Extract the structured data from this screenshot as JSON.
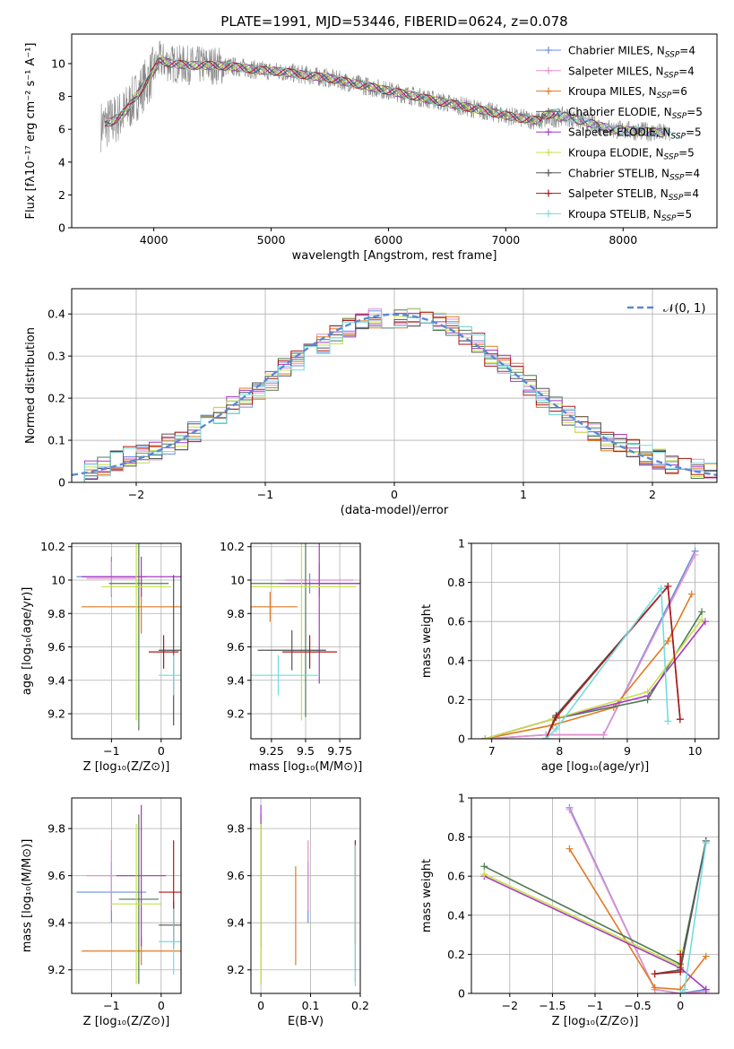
{
  "title": "PLATE=1991, MJD=53446, FIBERID=0624, z=0.078",
  "models": [
    {
      "name": "Chabrier MILES",
      "nssp": "4",
      "color": "#6a8fdd"
    },
    {
      "name": "Salpeter MILES",
      "nssp": "4",
      "color": "#e58fcf"
    },
    {
      "name": "Kroupa MILES",
      "nssp": "6",
      "color": "#e07a22"
    },
    {
      "name": "Chabrier ELODIE",
      "nssp": "5",
      "color": "#4f7a55"
    },
    {
      "name": "Salpeter ELODIE",
      "nssp": "5",
      "color": "#a63ac0"
    },
    {
      "name": "Kroupa ELODIE",
      "nssp": "5",
      "color": "#c8e04a"
    },
    {
      "name": "Chabrier STELIB",
      "nssp": "4",
      "color": "#555555"
    },
    {
      "name": "Salpeter STELIB",
      "nssp": "4",
      "color": "#b01818"
    },
    {
      "name": "Kroupa STELIB",
      "nssp": "5",
      "color": "#72dce0"
    }
  ],
  "chart_data": [
    {
      "id": "spectrum",
      "type": "line",
      "xlabel": "wavelength [Angstrom, rest frame]",
      "ylabel": "Flux [fλ10⁻¹⁷ erg cm⁻² s⁻¹ A⁻¹]",
      "xlim": [
        3300,
        8800
      ],
      "ylim": [
        0,
        11.8
      ],
      "xticks": [
        4000,
        5000,
        6000,
        7000,
        8000
      ],
      "yticks": [
        0,
        2,
        4,
        6,
        8,
        10
      ],
      "legend": "top-right",
      "data_x": [
        3550,
        3650,
        3750,
        3850,
        3950,
        4050,
        4150,
        4300,
        4500,
        4700,
        4900,
        5100,
        5300,
        5500,
        5700,
        5900,
        6100,
        6300,
        6500,
        6700,
        6900,
        7100,
        7300,
        7500,
        7700,
        7900,
        8100,
        8300,
        8400
      ],
      "data_y": [
        6.2,
        6.5,
        7.0,
        8.0,
        9.0,
        10.2,
        10.0,
        9.9,
        9.9,
        9.8,
        9.6,
        9.5,
        9.3,
        9.1,
        8.8,
        8.5,
        8.2,
        7.9,
        7.6,
        7.3,
        7.0,
        6.7,
        6.5,
        6.8,
        6.4,
        6.0,
        5.9,
        5.8,
        5.7
      ]
    },
    {
      "id": "residuals",
      "type": "line",
      "xlabel": "(data-model)/error",
      "ylabel": "Normed distribution",
      "xlim": [
        -2.5,
        2.5
      ],
      "ylim": [
        0,
        0.46
      ],
      "xticks": [
        -2,
        -1,
        0,
        1,
        2
      ],
      "yticks": [
        0.0,
        0.1,
        0.2,
        0.3,
        0.4
      ],
      "legend_label": "𝒩(0, 1)",
      "legend": "top-right",
      "bin_width": 0.1,
      "hist": [
        0.025,
        0.03,
        0.04,
        0.05,
        0.06,
        0.07,
        0.075,
        0.09,
        0.1,
        0.12,
        0.14,
        0.16,
        0.18,
        0.2,
        0.22,
        0.24,
        0.27,
        0.29,
        0.31,
        0.33,
        0.35,
        0.37,
        0.38,
        0.39,
        0.38,
        0.39,
        0.395,
        0.39,
        0.38,
        0.37,
        0.35,
        0.33,
        0.3,
        0.28,
        0.26,
        0.23,
        0.2,
        0.18,
        0.16,
        0.14,
        0.12,
        0.1,
        0.09,
        0.08,
        0.065,
        0.055,
        0.045,
        0.035,
        0.03,
        0.025
      ]
    },
    {
      "id": "age_vs_z",
      "type": "scatter",
      "xlabel": "Z [log₁₀(Z/Z⊙)]",
      "ylabel": "age  [log₁₀(age/yr)]",
      "xlim": [
        -1.8,
        0.4
      ],
      "ylim": [
        9.05,
        10.22
      ],
      "xticks": [
        -1,
        0
      ],
      "yticks": [
        9.2,
        9.4,
        9.6,
        9.8,
        10.0,
        10.2
      ],
      "points": [
        {
          "m": 0,
          "x": -1.0,
          "y": 10.02,
          "xerr": 0.7,
          "yerr": 0.12
        },
        {
          "m": 1,
          "x": -1.0,
          "y": 10.01,
          "xerr": 0.5,
          "yerr": 0.1
        },
        {
          "m": 2,
          "x": -0.4,
          "y": 9.84,
          "xerr": 1.2,
          "yerr": 0.16
        },
        {
          "m": 3,
          "x": -0.45,
          "y": 9.98,
          "xerr": 0.6,
          "yerr": 0.88
        },
        {
          "m": 4,
          "x": -0.4,
          "y": 10.02,
          "xerr": 1.2,
          "yerr": 0.12
        },
        {
          "m": 5,
          "x": -0.5,
          "y": 9.96,
          "xerr": 0.7,
          "yerr": 0.8
        },
        {
          "m": 6,
          "x": 0.25,
          "y": 9.58,
          "xerr": 0.3,
          "yerr": 0.45
        },
        {
          "m": 7,
          "x": 0.05,
          "y": 9.57,
          "xerr": 0.3,
          "yerr": 0.1
        },
        {
          "m": 8,
          "x": 0.25,
          "y": 9.43,
          "xerr": 0.3,
          "yerr": 0.12
        }
      ]
    },
    {
      "id": "age_vs_mass",
      "type": "scatter",
      "xlabel": "mass [log₁₀(M/M⊙)]",
      "ylabel": "",
      "xlim": [
        9.1,
        9.9
      ],
      "ylim": [
        9.05,
        10.22
      ],
      "xticks": [
        9.25,
        9.5,
        9.75
      ],
      "yticks": [
        9.2,
        9.4,
        9.6,
        9.8,
        10.0,
        10.2
      ],
      "points": [
        {
          "m": 0,
          "x": 9.53,
          "y": 9.98,
          "xerr": 0.2,
          "yerr": 0.06
        },
        {
          "m": 1,
          "x": 9.6,
          "y": 10.0,
          "xerr": 0.25,
          "yerr": 0.1
        },
        {
          "m": 2,
          "x": 9.24,
          "y": 9.84,
          "xerr": 0.2,
          "yerr": 0.09
        },
        {
          "m": 3,
          "x": 9.5,
          "y": 9.98,
          "xerr": 0.5,
          "yerr": 0.8
        },
        {
          "m": 4,
          "x": 9.6,
          "y": 9.98,
          "xerr": 0.3,
          "yerr": 0.6
        },
        {
          "m": 5,
          "x": 9.47,
          "y": 9.96,
          "xerr": 0.4,
          "yerr": 0.8
        },
        {
          "m": 6,
          "x": 9.4,
          "y": 9.58,
          "xerr": 0.25,
          "yerr": 0.12
        },
        {
          "m": 7,
          "x": 9.53,
          "y": 9.57,
          "xerr": 0.2,
          "yerr": 0.1
        },
        {
          "m": 8,
          "x": 9.3,
          "y": 9.43,
          "xerr": 0.3,
          "yerr": 0.12
        }
      ]
    },
    {
      "id": "weight_vs_age",
      "type": "line",
      "xlabel": "age  [log₁₀(age/yr)]",
      "ylabel": "mass weight",
      "xlim": [
        6.7,
        10.35
      ],
      "ylim": [
        0,
        1.0
      ],
      "xticks": [
        7,
        8,
        9,
        10
      ],
      "yticks": [
        0.0,
        0.2,
        0.4,
        0.6,
        0.8,
        1.0
      ],
      "series": [
        {
          "m": 0,
          "x": [
            6.9,
            7.8,
            8.65,
            10.0
          ],
          "y": [
            0.0,
            0.02,
            0.02,
            0.96
          ]
        },
        {
          "m": 1,
          "x": [
            6.9,
            7.8,
            8.65,
            10.0
          ],
          "y": [
            0.0,
            0.02,
            0.02,
            0.94
          ]
        },
        {
          "m": 2,
          "x": [
            6.9,
            7.9,
            8.8,
            9.6,
            9.95
          ],
          "y": [
            0.0,
            0.07,
            0.16,
            0.5,
            0.74
          ]
        },
        {
          "m": 3,
          "x": [
            6.9,
            7.9,
            9.3,
            10.1
          ],
          "y": [
            0.0,
            0.1,
            0.2,
            0.65
          ]
        },
        {
          "m": 4,
          "x": [
            6.9,
            7.9,
            9.3,
            10.15
          ],
          "y": [
            0.0,
            0.1,
            0.22,
            0.6
          ]
        },
        {
          "m": 5,
          "x": [
            6.9,
            7.9,
            9.3,
            10.1
          ],
          "y": [
            0.0,
            0.1,
            0.24,
            0.61
          ]
        },
        {
          "m": 6,
          "x": [
            7.8,
            7.95,
            9.6,
            9.78
          ],
          "y": [
            0.0,
            0.12,
            0.78,
            0.1
          ]
        },
        {
          "m": 7,
          "x": [
            7.8,
            7.95,
            9.6,
            9.78
          ],
          "y": [
            0.0,
            0.11,
            0.78,
            0.1
          ]
        },
        {
          "m": 8,
          "x": [
            7.8,
            7.95,
            9.5,
            9.6
          ],
          "y": [
            0.0,
            0.05,
            0.77,
            0.09
          ]
        }
      ]
    },
    {
      "id": "mass_vs_z",
      "type": "scatter",
      "xlabel": "Z [log₁₀(Z/Z⊙)]",
      "ylabel": "mass [log₁₀(M/M⊙)]",
      "xlim": [
        -1.8,
        0.4
      ],
      "ylim": [
        9.1,
        9.93
      ],
      "xticks": [
        -1,
        0
      ],
      "yticks": [
        9.2,
        9.4,
        9.6,
        9.8
      ],
      "points": [
        {
          "m": 0,
          "x": -1.0,
          "y": 9.53,
          "xerr": 0.7,
          "yerr": 0.13
        },
        {
          "m": 1,
          "x": -1.0,
          "y": 9.6,
          "xerr": 0.5,
          "yerr": 0.15
        },
        {
          "m": 2,
          "x": -0.4,
          "y": 9.28,
          "xerr": 1.2,
          "yerr": 0.06
        },
        {
          "m": 3,
          "x": -0.45,
          "y": 9.5,
          "xerr": 0.4,
          "yerr": 0.36
        },
        {
          "m": 4,
          "x": -0.4,
          "y": 9.6,
          "xerr": 0.5,
          "yerr": 0.3
        },
        {
          "m": 5,
          "x": -0.5,
          "y": 9.48,
          "xerr": 0.5,
          "yerr": 0.34
        },
        {
          "m": 6,
          "x": 0.25,
          "y": 9.39,
          "xerr": 0.3,
          "yerr": 0.1
        },
        {
          "m": 7,
          "x": 0.25,
          "y": 9.53,
          "xerr": 0.3,
          "yerr": 0.22
        },
        {
          "m": 8,
          "x": 0.25,
          "y": 9.32,
          "xerr": 0.3,
          "yerr": 0.14
        }
      ]
    },
    {
      "id": "mass_vs_ebv",
      "type": "scatter",
      "xlabel": "E(B-V)",
      "ylabel": "",
      "xlim": [
        -0.02,
        0.2
      ],
      "ylim": [
        9.1,
        9.93
      ],
      "xticks": [
        0.0,
        0.1,
        0.2
      ],
      "yticks": [
        9.2,
        9.4,
        9.6,
        9.8
      ],
      "points": [
        {
          "m": 0,
          "x": 0.095,
          "y": 9.53,
          "xerr": 0,
          "yerr": 0.13
        },
        {
          "m": 1,
          "x": 0.095,
          "y": 9.6,
          "xerr": 0,
          "yerr": 0.15
        },
        {
          "m": 2,
          "x": 0.07,
          "y": 9.43,
          "xerr": 0,
          "yerr": 0.21
        },
        {
          "m": 3,
          "x": 0.0,
          "y": 9.5,
          "xerr": 0,
          "yerr": 0.36
        },
        {
          "m": 4,
          "x": 0.0,
          "y": 9.6,
          "xerr": 0,
          "yerr": 0.3
        },
        {
          "m": 5,
          "x": 0.0,
          "y": 9.48,
          "xerr": 0,
          "yerr": 0.34
        },
        {
          "m": 6,
          "x": 0.19,
          "y": 9.45,
          "xerr": 0,
          "yerr": 0.3
        },
        {
          "m": 7,
          "x": 0.19,
          "y": 9.53,
          "xerr": 0,
          "yerr": 0.22
        },
        {
          "m": 8,
          "x": 0.19,
          "y": 9.43,
          "xerr": 0,
          "yerr": 0.3
        }
      ]
    },
    {
      "id": "weight_vs_z",
      "type": "line",
      "xlabel": "Z [log₁₀(Z/Z⊙)]",
      "ylabel": "mass weight",
      "xlim": [
        -2.45,
        0.45
      ],
      "ylim": [
        0,
        1.0
      ],
      "xticks": [
        -2.0,
        -1.5,
        -1.0,
        -0.5,
        0.0
      ],
      "yticks": [
        0.0,
        0.2,
        0.4,
        0.6,
        0.8,
        1.0
      ],
      "series": [
        {
          "m": 0,
          "x": [
            -1.3,
            -0.3,
            0.0,
            0.3
          ],
          "y": [
            0.95,
            0.02,
            0.0,
            0.02
          ]
        },
        {
          "m": 1,
          "x": [
            -1.3,
            -0.3,
            0.0,
            0.3
          ],
          "y": [
            0.94,
            0.02,
            0.0,
            0.01
          ]
        },
        {
          "m": 2,
          "x": [
            -1.3,
            -0.3,
            0.0,
            0.3
          ],
          "y": [
            0.74,
            0.03,
            0.02,
            0.19
          ]
        },
        {
          "m": 3,
          "x": [
            -2.3,
            0.0,
            0.3
          ],
          "y": [
            0.65,
            0.15,
            0.78
          ]
        },
        {
          "m": 4,
          "x": [
            -2.3,
            0.0,
            0.3
          ],
          "y": [
            0.6,
            0.13,
            0.02
          ]
        },
        {
          "m": 5,
          "x": [
            -2.3,
            0.0,
            0.0
          ],
          "y": [
            0.61,
            0.14,
            0.22
          ]
        },
        {
          "m": 6,
          "x": [
            -0.3,
            0.0,
            0.3
          ],
          "y": [
            0.1,
            0.12,
            0.78
          ]
        },
        {
          "m": 7,
          "x": [
            -0.3,
            0.0,
            0.0
          ],
          "y": [
            0.1,
            0.11,
            0.2
          ]
        },
        {
          "m": 8,
          "x": [
            0.0,
            0.05,
            0.3
          ],
          "y": [
            0.0,
            0.02,
            0.77
          ]
        }
      ]
    }
  ]
}
